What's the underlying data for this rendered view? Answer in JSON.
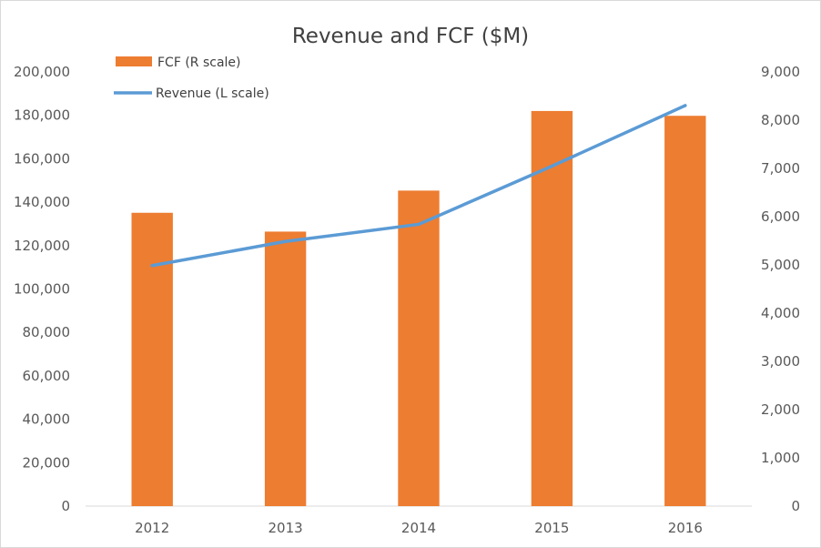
{
  "chart_data": {
    "type": "bar",
    "title": "Revenue and FCF ($M)",
    "categories": [
      "2012",
      "2013",
      "2014",
      "2015",
      "2016"
    ],
    "series": [
      {
        "name": "FCF (R scale)",
        "type": "bar",
        "axis": "right",
        "color": "#ED7D31",
        "values": [
          6080,
          5690,
          6540,
          8190,
          8090
        ]
      },
      {
        "name": "Revenue (L scale)",
        "type": "line",
        "axis": "left",
        "color": "#5B9BD5",
        "values": [
          110800,
          121900,
          129800,
          156600,
          184500
        ]
      }
    ],
    "left_axis": {
      "ylim": [
        0,
        200000
      ],
      "ticks": [
        "0",
        "20,000",
        "40,000",
        "60,000",
        "80,000",
        "100,000",
        "120,000",
        "140,000",
        "160,000",
        "180,000",
        "200,000"
      ]
    },
    "right_axis": {
      "ylim": [
        0,
        9000
      ],
      "ticks": [
        "0",
        "1,000",
        "2,000",
        "3,000",
        "4,000",
        "5,000",
        "6,000",
        "7,000",
        "8,000",
        "9,000"
      ]
    },
    "grid": false,
    "legend_position": "top-left"
  }
}
